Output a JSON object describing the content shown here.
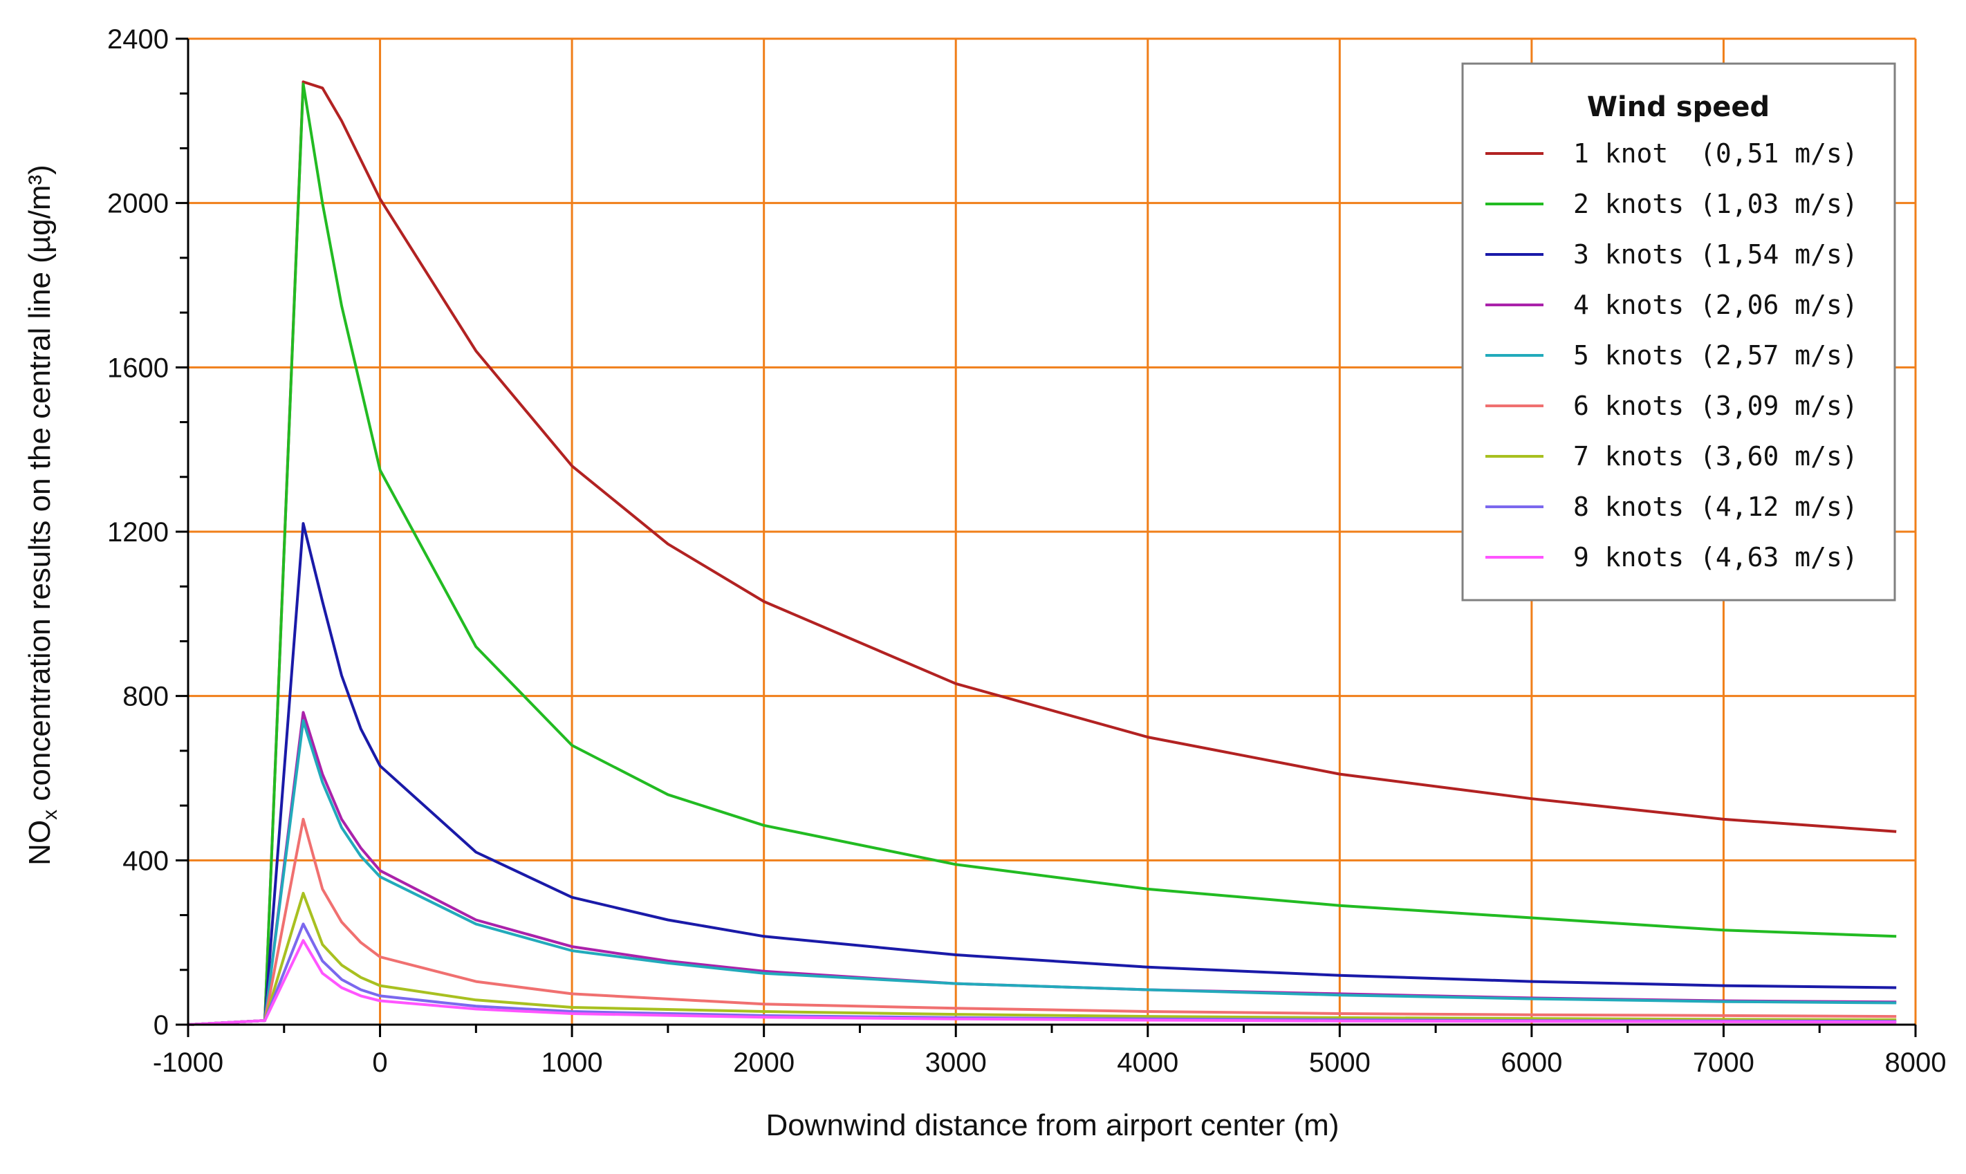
{
  "chart_data": {
    "type": "line",
    "xlabel": "Downwind distance from airport center (m)",
    "ylabel_main": "NO",
    "ylabel_sub": "x",
    "ylabel_rest": " concentration results on the central line (µg/m³)",
    "xlim": [
      -1000,
      8000
    ],
    "ylim": [
      0,
      2400
    ],
    "xticks": [
      "-1000",
      "0",
      "1000",
      "2000",
      "3000",
      "4000",
      "5000",
      "6000",
      "7000",
      "8000"
    ],
    "yticks": [
      "0",
      "400",
      "800",
      "1200",
      "1600",
      "2000",
      "2400"
    ],
    "grid": true,
    "legend_title": "Wind speed",
    "legend_position": "top-right",
    "series": [
      {
        "name": "1 knot  (0,51 m/s)",
        "color": "#b22222",
        "x": [
          -1000,
          -600,
          -400,
          -300,
          -200,
          0,
          500,
          1000,
          1500,
          2000,
          3000,
          4000,
          5000,
          6000,
          7000,
          7900
        ],
        "y": [
          0,
          10,
          2295,
          2280,
          2200,
          2010,
          1640,
          1360,
          1170,
          1030,
          830,
          700,
          610,
          550,
          500,
          470
        ]
      },
      {
        "name": "2 knots (1,03 m/s)",
        "color": "#22bb22",
        "x": [
          -1000,
          -600,
          -400,
          -300,
          -200,
          0,
          500,
          1000,
          1500,
          2000,
          3000,
          4000,
          5000,
          6000,
          7000,
          7900
        ],
        "y": [
          0,
          10,
          2290,
          2000,
          1750,
          1350,
          920,
          680,
          560,
          485,
          390,
          330,
          290,
          260,
          230,
          215
        ]
      },
      {
        "name": "3 knots (1,54 m/s)",
        "color": "#1a1aa8",
        "x": [
          -1000,
          -600,
          -400,
          -300,
          -200,
          -100,
          0,
          500,
          1000,
          1500,
          2000,
          3000,
          4000,
          5000,
          6000,
          7000,
          7900
        ],
        "y": [
          0,
          10,
          1220,
          1030,
          850,
          720,
          630,
          420,
          310,
          255,
          215,
          170,
          140,
          120,
          105,
          95,
          90
        ]
      },
      {
        "name": "4 knots (2,06 m/s)",
        "color": "#aa22aa",
        "x": [
          -1000,
          -600,
          -400,
          -300,
          -200,
          -100,
          0,
          500,
          1000,
          1500,
          2000,
          3000,
          4000,
          5000,
          6000,
          7000,
          7900
        ],
        "y": [
          0,
          10,
          760,
          610,
          500,
          430,
          375,
          255,
          190,
          155,
          130,
          100,
          85,
          75,
          65,
          58,
          55
        ]
      },
      {
        "name": "5 knots (2,57 m/s)",
        "color": "#22aabb",
        "x": [
          -1000,
          -600,
          -400,
          -300,
          -200,
          -100,
          0,
          500,
          1000,
          1500,
          2000,
          3000,
          4000,
          5000,
          6000,
          7000,
          7900
        ],
        "y": [
          0,
          10,
          740,
          590,
          480,
          410,
          360,
          245,
          180,
          150,
          125,
          100,
          85,
          72,
          63,
          56,
          53
        ]
      },
      {
        "name": "6 knots (3,09 m/s)",
        "color": "#f07070",
        "x": [
          -1000,
          -600,
          -400,
          -300,
          -200,
          -100,
          0,
          500,
          1000,
          2000,
          3000,
          4000,
          5000,
          6000,
          7000,
          7900
        ],
        "y": [
          0,
          10,
          500,
          330,
          250,
          200,
          165,
          105,
          75,
          50,
          40,
          32,
          27,
          24,
          22,
          20
        ]
      },
      {
        "name": "7 knots (3,60 m/s)",
        "color": "#a8c020",
        "x": [
          -1000,
          -600,
          -400,
          -300,
          -200,
          -100,
          0,
          500,
          1000,
          2000,
          3000,
          4000,
          5000,
          6000,
          7000,
          7900
        ],
        "y": [
          0,
          10,
          320,
          195,
          145,
          115,
          95,
          60,
          42,
          32,
          25,
          20,
          17,
          15,
          13,
          12
        ]
      },
      {
        "name": "8 knots (4,12 m/s)",
        "color": "#7b68ee",
        "x": [
          -1000,
          -600,
          -400,
          -300,
          -200,
          -100,
          0,
          500,
          1000,
          2000,
          3000,
          4000,
          5000,
          6000,
          7000,
          7900
        ],
        "y": [
          0,
          10,
          245,
          155,
          110,
          85,
          70,
          45,
          32,
          22,
          17,
          14,
          12,
          10,
          9,
          8
        ]
      },
      {
        "name": "9 knots (4,63 m/s)",
        "color": "#ff55ff",
        "x": [
          -1000,
          -600,
          -400,
          -300,
          -200,
          -100,
          0,
          500,
          1000,
          2000,
          3000,
          4000,
          5000,
          6000,
          7000,
          7900
        ],
        "y": [
          0,
          10,
          205,
          125,
          90,
          70,
          58,
          38,
          27,
          18,
          14,
          11,
          9,
          8,
          7,
          6
        ]
      }
    ]
  },
  "colors": {
    "grid": "#f07f1a",
    "axis": "#000000",
    "legend_border": "#808080"
  }
}
